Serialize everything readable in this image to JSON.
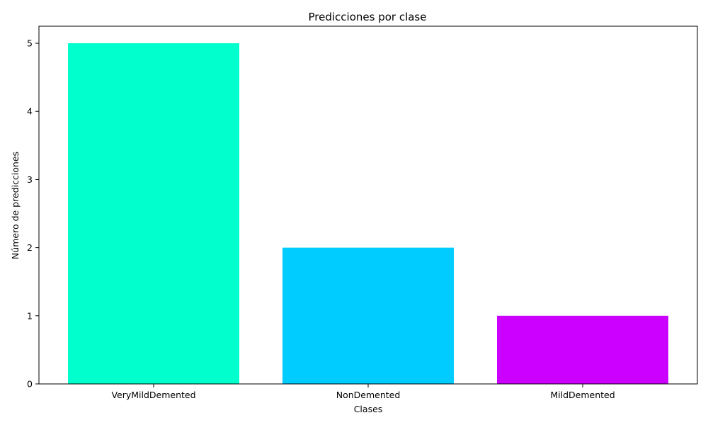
{
  "chart_data": {
    "type": "bar",
    "title": "Predicciones por clase",
    "xlabel": "Clases",
    "ylabel": "Número de predicciones",
    "categories": [
      "VeryMildDemented",
      "NonDemented",
      "MildDemented"
    ],
    "values": [
      5,
      2,
      1
    ],
    "colors": [
      "#00ffcc",
      "#00ccff",
      "#cc00ff"
    ],
    "ylim": [
      0,
      5.25
    ],
    "yticks": [
      "0",
      "1",
      "2",
      "3",
      "4",
      "5"
    ],
    "grid": false,
    "legend": "none"
  }
}
